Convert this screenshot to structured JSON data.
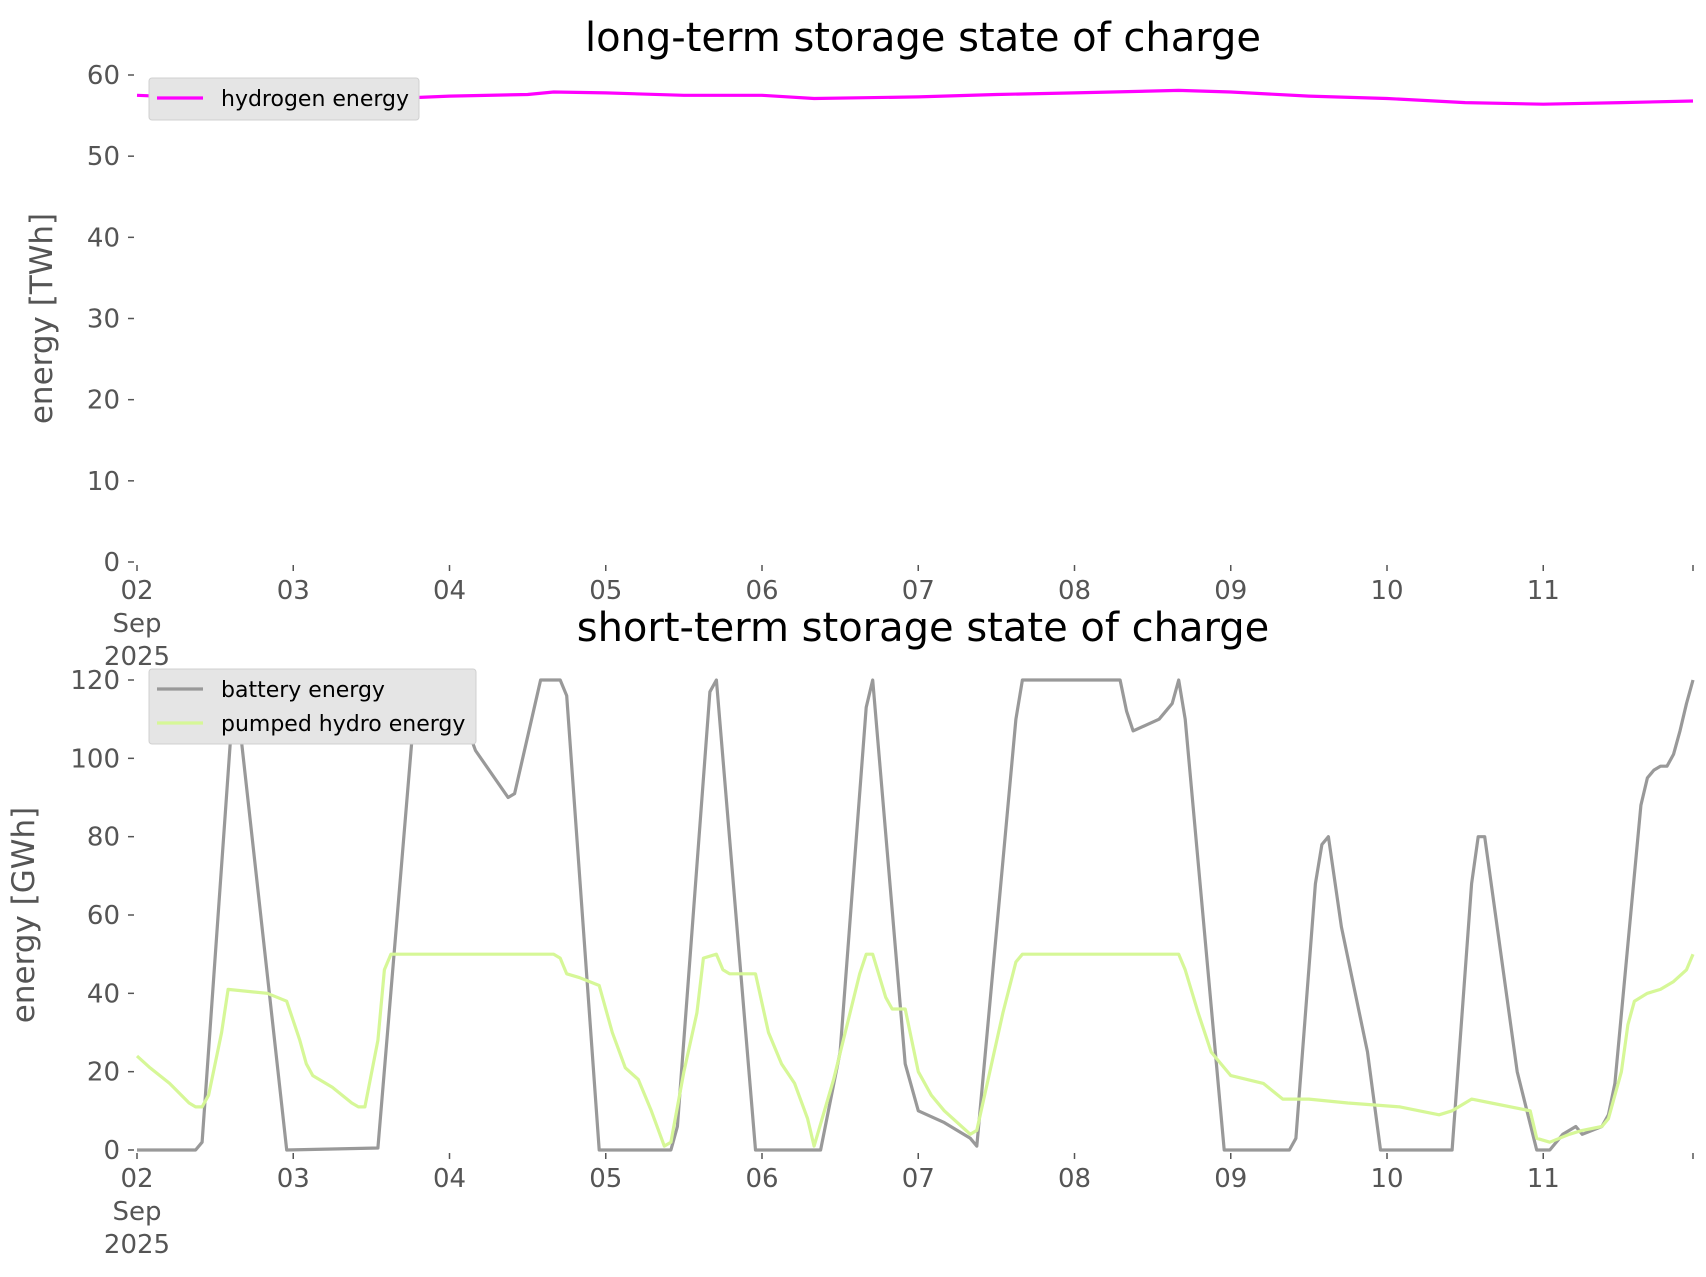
{
  "chart_data": [
    {
      "type": "line",
      "title": "long-term storage state of charge",
      "xlabel": "",
      "ylabel": "energy [TWh]",
      "ylim": [
        0,
        60
      ],
      "xlim": [
        "2025-09-02 00:00",
        "2025-09-11 23:00"
      ],
      "x_tick_labels": [
        "02\nSep\n2025",
        "03",
        "04",
        "05",
        "06",
        "07",
        "08",
        "09",
        "10",
        "11"
      ],
      "y_tick_labels": [
        "0",
        "10",
        "20",
        "30",
        "40",
        "50",
        "60"
      ],
      "grid": false,
      "legend_position": "upper left",
      "series": [
        {
          "name": "hydrogen energy",
          "color": "#ff00ff",
          "points": [
            [
              "2025-09-02 00:00",
              57.5
            ],
            [
              "2025-09-02 12:00",
              57.1
            ],
            [
              "2025-09-03 00:00",
              56.9
            ],
            [
              "2025-09-03 12:00",
              57.0
            ],
            [
              "2025-09-04 00:00",
              57.4
            ],
            [
              "2025-09-04 12:00",
              57.6
            ],
            [
              "2025-09-04 16:00",
              57.9
            ],
            [
              "2025-09-05 00:00",
              57.8
            ],
            [
              "2025-09-05 12:00",
              57.5
            ],
            [
              "2025-09-06 00:00",
              57.5
            ],
            [
              "2025-09-06 08:00",
              57.1
            ],
            [
              "2025-09-06 16:00",
              57.2
            ],
            [
              "2025-09-07 00:00",
              57.3
            ],
            [
              "2025-09-07 12:00",
              57.6
            ],
            [
              "2025-09-08 00:00",
              57.8
            ],
            [
              "2025-09-08 16:00",
              58.1
            ],
            [
              "2025-09-09 00:00",
              57.9
            ],
            [
              "2025-09-09 12:00",
              57.4
            ],
            [
              "2025-09-10 00:00",
              57.1
            ],
            [
              "2025-09-10 12:00",
              56.6
            ],
            [
              "2025-09-11 00:00",
              56.4
            ],
            [
              "2025-09-11 12:00",
              56.6
            ],
            [
              "2025-09-11 23:00",
              56.8
            ]
          ]
        }
      ]
    },
    {
      "type": "line",
      "title": "short-term storage state of charge",
      "xlabel": "",
      "ylabel": "energy [GWh]",
      "ylim": [
        0,
        120
      ],
      "xlim": [
        "2025-09-02 00:00",
        "2025-09-11 23:00"
      ],
      "x_tick_labels": [
        "02\nSep\n2025",
        "03",
        "04",
        "05",
        "06",
        "07",
        "08",
        "09",
        "10",
        "11"
      ],
      "y_tick_labels": [
        "0",
        "20",
        "40",
        "60",
        "80",
        "100",
        "120"
      ],
      "grid": false,
      "legend_position": "upper left",
      "series": [
        {
          "name": "battery energy",
          "color": "#999999",
          "points": [
            [
              "2025-09-02 00:00",
              0
            ],
            [
              "2025-09-02 09:00",
              0
            ],
            [
              "2025-09-02 10:00",
              2
            ],
            [
              "2025-09-02 15:00",
              120
            ],
            [
              "2025-09-02 23:00",
              0
            ],
            [
              "2025-09-03 13:00",
              0.5
            ],
            [
              "2025-09-03 19:00",
              120
            ],
            [
              "2025-09-04 00:00",
              120
            ],
            [
              "2025-09-04 04:00",
              102
            ],
            [
              "2025-09-04 09:00",
              90
            ],
            [
              "2025-09-04 10:00",
              91
            ],
            [
              "2025-09-04 14:00",
              120
            ],
            [
              "2025-09-04 17:00",
              120
            ],
            [
              "2025-09-04 18:00",
              116
            ],
            [
              "2025-09-04 23:00",
              0
            ],
            [
              "2025-09-05 10:00",
              0
            ],
            [
              "2025-09-05 11:00",
              6
            ],
            [
              "2025-09-05 16:00",
              117
            ],
            [
              "2025-09-05 17:00",
              120
            ],
            [
              "2025-09-05 23:00",
              0
            ],
            [
              "2025-09-06 09:00",
              0
            ],
            [
              "2025-09-06 12:00",
              25
            ],
            [
              "2025-09-06 16:00",
              113
            ],
            [
              "2025-09-06 17:00",
              120
            ],
            [
              "2025-09-06 22:00",
              22
            ],
            [
              "2025-09-07 00:00",
              10
            ],
            [
              "2025-09-07 04:00",
              7
            ],
            [
              "2025-09-07 08:00",
              3
            ],
            [
              "2025-09-07 09:00",
              1
            ],
            [
              "2025-09-07 15:00",
              110
            ],
            [
              "2025-09-07 16:00",
              120
            ],
            [
              "2025-09-08 00:00",
              120
            ],
            [
              "2025-09-08 07:00",
              120
            ],
            [
              "2025-09-08 08:00",
              112
            ],
            [
              "2025-09-08 09:00",
              107
            ],
            [
              "2025-09-08 13:00",
              110
            ],
            [
              "2025-09-08 15:00",
              114
            ],
            [
              "2025-09-08 16:00",
              120
            ],
            [
              "2025-09-08 17:00",
              110
            ],
            [
              "2025-09-08 23:00",
              0
            ],
            [
              "2025-09-09 09:00",
              0
            ],
            [
              "2025-09-09 10:00",
              3
            ],
            [
              "2025-09-09 13:00",
              68
            ],
            [
              "2025-09-09 14:00",
              78
            ],
            [
              "2025-09-09 15:00",
              80
            ],
            [
              "2025-09-09 17:00",
              57
            ],
            [
              "2025-09-09 21:00",
              25
            ],
            [
              "2025-09-09 23:00",
              0
            ],
            [
              "2025-09-10 10:00",
              0
            ],
            [
              "2025-09-10 13:00",
              68
            ],
            [
              "2025-09-10 14:00",
              80
            ],
            [
              "2025-09-10 15:00",
              80
            ],
            [
              "2025-09-10 20:00",
              20
            ],
            [
              "2025-09-10 23:00",
              0
            ],
            [
              "2025-09-11 01:00",
              0
            ],
            [
              "2025-09-11 03:00",
              4
            ],
            [
              "2025-09-11 05:00",
              6
            ],
            [
              "2025-09-11 06:00",
              4
            ],
            [
              "2025-09-11 09:00",
              6
            ],
            [
              "2025-09-11 10:00",
              9
            ],
            [
              "2025-09-11 11:00",
              17
            ],
            [
              "2025-09-11 15:00",
              88
            ],
            [
              "2025-09-11 16:00",
              95
            ],
            [
              "2025-09-11 17:00",
              97
            ],
            [
              "2025-09-11 18:00",
              98
            ],
            [
              "2025-09-11 19:00",
              98
            ],
            [
              "2025-09-11 20:00",
              101
            ],
            [
              "2025-09-11 21:00",
              107
            ],
            [
              "2025-09-11 22:00",
              114
            ],
            [
              "2025-09-11 23:00",
              120
            ]
          ]
        },
        {
          "name": "pumped hydro energy",
          "color": "#d6f797",
          "points": [
            [
              "2025-09-02 00:00",
              24
            ],
            [
              "2025-09-02 02:00",
              21
            ],
            [
              "2025-09-02 05:00",
              17
            ],
            [
              "2025-09-02 08:00",
              12
            ],
            [
              "2025-09-02 09:00",
              11
            ],
            [
              "2025-09-02 10:00",
              11
            ],
            [
              "2025-09-02 11:00",
              14
            ],
            [
              "2025-09-02 13:00",
              30
            ],
            [
              "2025-09-02 14:00",
              41
            ],
            [
              "2025-09-02 20:00",
              40
            ],
            [
              "2025-09-02 23:00",
              38
            ],
            [
              "2025-09-03 01:00",
              28
            ],
            [
              "2025-09-03 02:00",
              22
            ],
            [
              "2025-09-03 03:00",
              19
            ],
            [
              "2025-09-03 06:00",
              16
            ],
            [
              "2025-09-03 09:00",
              12
            ],
            [
              "2025-09-03 10:00",
              11
            ],
            [
              "2025-09-03 11:00",
              11
            ],
            [
              "2025-09-03 13:00",
              28
            ],
            [
              "2025-09-03 14:00",
              46
            ],
            [
              "2025-09-03 15:00",
              50
            ],
            [
              "2025-09-04 00:00",
              50
            ],
            [
              "2025-09-04 16:00",
              50
            ],
            [
              "2025-09-04 17:00",
              49
            ],
            [
              "2025-09-04 18:00",
              45
            ],
            [
              "2025-09-04 20:00",
              44
            ],
            [
              "2025-09-04 23:00",
              42
            ],
            [
              "2025-09-05 01:00",
              30
            ],
            [
              "2025-09-05 03:00",
              21
            ],
            [
              "2025-09-05 05:00",
              18
            ],
            [
              "2025-09-05 07:00",
              10
            ],
            [
              "2025-09-05 09:00",
              1
            ],
            [
              "2025-09-05 10:00",
              2
            ],
            [
              "2025-09-05 12:00",
              20
            ],
            [
              "2025-09-05 14:00",
              35
            ],
            [
              "2025-09-05 15:00",
              49
            ],
            [
              "2025-09-05 17:00",
              50
            ],
            [
              "2025-09-05 18:00",
              46
            ],
            [
              "2025-09-05 19:00",
              45
            ],
            [
              "2025-09-05 23:00",
              45
            ],
            [
              "2025-09-06 01:00",
              30
            ],
            [
              "2025-09-06 03:00",
              22
            ],
            [
              "2025-09-06 05:00",
              17
            ],
            [
              "2025-09-06 07:00",
              8
            ],
            [
              "2025-09-06 08:00",
              1
            ],
            [
              "2025-09-06 11:00",
              18
            ],
            [
              "2025-09-06 15:00",
              45
            ],
            [
              "2025-09-06 16:00",
              50
            ],
            [
              "2025-09-06 17:00",
              50
            ],
            [
              "2025-09-06 19:00",
              39
            ],
            [
              "2025-09-06 20:00",
              36
            ],
            [
              "2025-09-06 22:00",
              36
            ],
            [
              "2025-09-07 00:00",
              20
            ],
            [
              "2025-09-07 02:00",
              14
            ],
            [
              "2025-09-07 04:00",
              10
            ],
            [
              "2025-09-07 06:00",
              7
            ],
            [
              "2025-09-07 08:00",
              4
            ],
            [
              "2025-09-07 09:00",
              5
            ],
            [
              "2025-09-07 13:00",
              35
            ],
            [
              "2025-09-07 15:00",
              48
            ],
            [
              "2025-09-07 16:00",
              50
            ],
            [
              "2025-09-08 16:00",
              50
            ],
            [
              "2025-09-08 17:00",
              46
            ],
            [
              "2025-09-08 19:00",
              35
            ],
            [
              "2025-09-08 21:00",
              25
            ],
            [
              "2025-09-09 00:00",
              19
            ],
            [
              "2025-09-09 05:00",
              17
            ],
            [
              "2025-09-09 08:00",
              13
            ],
            [
              "2025-09-09 12:00",
              13
            ],
            [
              "2025-09-09 18:00",
              12
            ],
            [
              "2025-09-10 02:00",
              11
            ],
            [
              "2025-09-10 08:00",
              9
            ],
            [
              "2025-09-10 10:00",
              10
            ],
            [
              "2025-09-10 13:00",
              13
            ],
            [
              "2025-09-10 16:00",
              12
            ],
            [
              "2025-09-10 22:00",
              10
            ],
            [
              "2025-09-10 23:00",
              3
            ],
            [
              "2025-09-11 01:00",
              2
            ],
            [
              "2025-09-11 04:00",
              4
            ],
            [
              "2025-09-11 06:00",
              5
            ],
            [
              "2025-09-11 09:00",
              6
            ],
            [
              "2025-09-11 10:00",
              8
            ],
            [
              "2025-09-11 12:00",
              20
            ],
            [
              "2025-09-11 13:00",
              32
            ],
            [
              "2025-09-11 14:00",
              38
            ],
            [
              "2025-09-11 16:00",
              40
            ],
            [
              "2025-09-11 18:00",
              41
            ],
            [
              "2025-09-11 20:00",
              43
            ],
            [
              "2025-09-11 22:00",
              46
            ],
            [
              "2025-09-11 23:00",
              50
            ]
          ]
        }
      ]
    }
  ]
}
